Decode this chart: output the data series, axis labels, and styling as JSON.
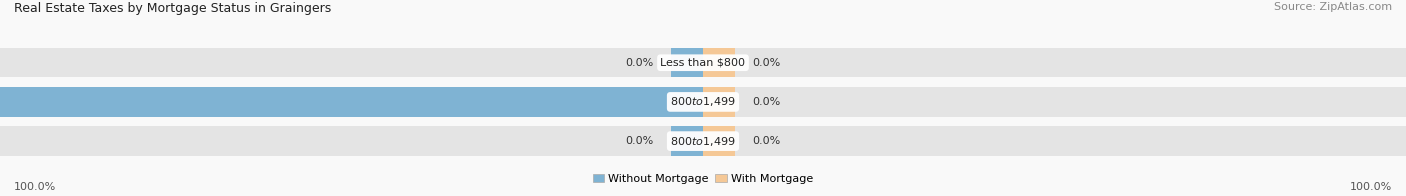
{
  "title": "Real Estate Taxes by Mortgage Status in Graingers",
  "source": "Source: ZipAtlas.com",
  "rows": [
    {
      "label": "Less than $800",
      "without_pct": 0.0,
      "with_pct": 0.0
    },
    {
      "label": "$800 to $1,499",
      "without_pct": 100.0,
      "with_pct": 0.0
    },
    {
      "label": "$800 to $1,499",
      "without_pct": 0.0,
      "with_pct": 0.0
    }
  ],
  "without_color": "#7fb3d3",
  "with_color": "#f5c896",
  "bar_bg_color": "#e4e4e4",
  "row_bg_colors": [
    "#f0f0f0",
    "#dde8f0",
    "#f0f0f0"
  ],
  "title_fontsize": 9,
  "label_fontsize": 8,
  "tick_fontsize": 8,
  "source_fontsize": 8,
  "legend_label_without": "Without Mortgage",
  "legend_label_with": "With Mortgage",
  "bg_color": "#f9f9f9",
  "stub_pct": 4.5,
  "center_label_bg": "#ffffff",
  "separator_color": "#ffffff"
}
